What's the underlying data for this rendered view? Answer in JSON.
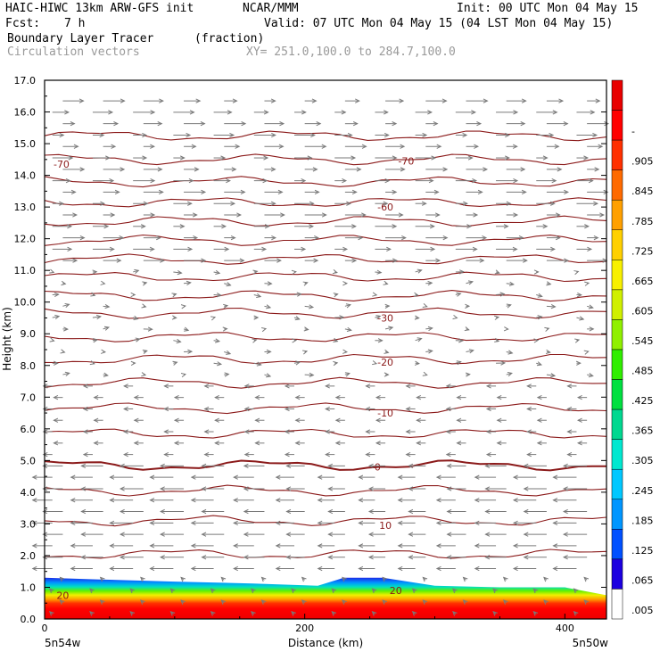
{
  "header": {
    "model_line": "HAIC-HIWC 13km ARW-GFS init",
    "org": "NCAR/MMM",
    "init_line": "Init: 00 UTC Mon 04 May 15",
    "fcst_label": "Fcst:",
    "fcst_value": "7 h",
    "valid_line": "Valid: 07 UTC Mon 04 May 15 (04 LST Mon 04 May 15)",
    "field_name": "Boundary Layer Tracer",
    "field_units": "(fraction)",
    "overlay_name": "Circulation vectors",
    "xy_line": "XY= 251.0,100.0 to 284.7,100.0"
  },
  "colors": {
    "contour": "#8b1a1a",
    "vector": "#7a7a7a",
    "frame": "#000000"
  },
  "chart_data": {
    "type": "heatmap",
    "xlabel": "Distance (km)",
    "ylabel": "Height (km)",
    "xlim": [
      0,
      432
    ],
    "ylim": [
      0,
      17
    ],
    "y_ticks": [
      "0.0",
      "1.0",
      "2.0",
      "3.0",
      "4.0",
      "5.0",
      "6.0",
      "7.0",
      "8.0",
      "9.0",
      "10.0",
      "11.0",
      "12.0",
      "13.0",
      "14.0",
      "15.0",
      "16.0",
      "17.0"
    ],
    "x_ticks": [
      {
        "value": 0,
        "label": "0"
      },
      {
        "value": 200,
        "label": "200"
      },
      {
        "value": 400,
        "label": "400"
      }
    ],
    "x_end_labels": {
      "left": "5n54w",
      "right": "5n50w"
    },
    "colorbar": {
      "labels": [
        ".005",
        ".065",
        ".125",
        ".185",
        ".245",
        ".305",
        ".365",
        ".425",
        ".485",
        ".545",
        ".605",
        ".665",
        ".725",
        ".785",
        ".845",
        ".905",
        "-"
      ],
      "colors": [
        "#ffffff",
        "#1c00e0",
        "#0050ff",
        "#0096ff",
        "#00c8ff",
        "#00e8d0",
        "#00d890",
        "#00e040",
        "#30ee00",
        "#90f000",
        "#d0f000",
        "#f8f000",
        "#ffd000",
        "#ffa000",
        "#ff6a00",
        "#ff3000",
        "#ff0000",
        "#e80000"
      ]
    },
    "temperature_contours": {
      "label_values": [
        "-70",
        "-70",
        "-60",
        "-30",
        "-20",
        "-10",
        "0",
        "10",
        "20",
        "20"
      ],
      "heights_km": [
        15.25,
        14.5,
        13.8,
        13.15,
        12.55,
        11.95,
        11.35,
        10.8,
        10.2,
        9.65,
        8.9,
        8.2,
        7.45,
        6.65,
        5.85,
        4.85,
        4.05,
        3.1,
        2.05
      ]
    },
    "boundary_layer_top_km": [
      {
        "x": 0,
        "y": 1.3
      },
      {
        "x": 40,
        "y": 1.25
      },
      {
        "x": 100,
        "y": 1.18
      },
      {
        "x": 160,
        "y": 1.12
      },
      {
        "x": 210,
        "y": 1.05
      },
      {
        "x": 230,
        "y": 1.3
      },
      {
        "x": 260,
        "y": 1.3
      },
      {
        "x": 300,
        "y": 1.05
      },
      {
        "x": 350,
        "y": 1.0
      },
      {
        "x": 400,
        "y": 1.0
      },
      {
        "x": 432,
        "y": 0.75
      }
    ]
  }
}
